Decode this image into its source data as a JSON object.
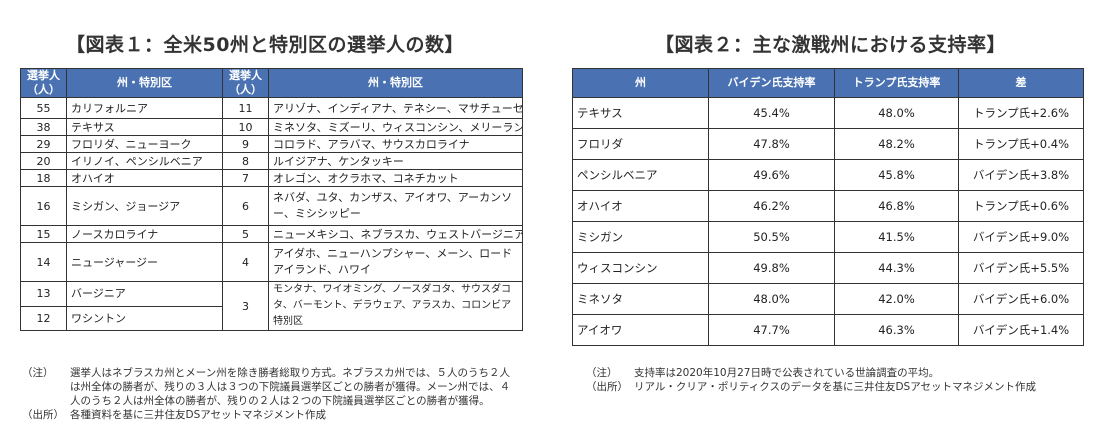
{
  "table1": {
    "title": "【図表１：全米50州と特別区の選挙人の数】",
    "headers": [
      "選挙人（人）",
      "州・特別区",
      "選挙人（人）",
      "州・特別区"
    ],
    "left_rows": [
      {
        "n": "55",
        "s": "カリフォルニア"
      },
      {
        "n": "38",
        "s": "テキサス"
      },
      {
        "n": "29",
        "s": "フロリダ、ニューヨーク"
      },
      {
        "n": "20",
        "s": "イリノイ、ペンシルベニア"
      },
      {
        "n": "18",
        "s": "オハイオ"
      },
      {
        "n": "16",
        "s": "ミシガン、ジョージア"
      },
      {
        "n": "15",
        "s": "ノースカロライナ"
      },
      {
        "n": "14",
        "s": "ニュージャージー"
      },
      {
        "n": "13",
        "s": "バージニア"
      },
      {
        "n": "12",
        "s": "ワシントン"
      }
    ],
    "right_rows": [
      {
        "n": "11",
        "s": "アリゾナ、インディアナ、テネシー、マサチューセッツ"
      },
      {
        "n": "10",
        "s": "ミネソタ、ミズーリ、ウィスコンシン、メリーランド"
      },
      {
        "n": "9",
        "s": "コロラド、アラバマ、サウスカロライナ"
      },
      {
        "n": "8",
        "s": "ルイジアナ、ケンタッキー"
      },
      {
        "n": "7",
        "s": "オレゴン、オクラホマ、コネチカット"
      },
      {
        "n": "6",
        "s": "ネバダ、ユタ、カンザス、アイオワ、アーカンソー、ミシシッピー"
      },
      {
        "n": "5",
        "s": "ニューメキシコ、ネブラスカ、ウェストバージニア"
      },
      {
        "n": "4",
        "s": "アイダホ、ニューハンプシャー、メーン、ロードアイランド、ハワイ"
      },
      {
        "n": "3",
        "s": "モンタナ、ワイオミング、ノースダコタ、サウスダコタ、バーモント、デラウェア、アラスカ、コロンビア特別区"
      }
    ]
  },
  "table2": {
    "title": "【図表２：主な激戦州における支持率】",
    "headers": [
      "州",
      "バイデン氏支持率",
      "トランプ氏支持率",
      "差"
    ],
    "rows": [
      {
        "state": "テキサス",
        "biden": "45.4%",
        "trump": "48.0%",
        "diff": "トランプ氏+2.6%"
      },
      {
        "state": "フロリダ",
        "biden": "47.8%",
        "trump": "48.2%",
        "diff": "トランプ氏+0.4%"
      },
      {
        "state": "ペンシルベニア",
        "biden": "49.6%",
        "trump": "45.8%",
        "diff": "バイデン氏+3.8%"
      },
      {
        "state": "オハイオ",
        "biden": "46.2%",
        "trump": "46.8%",
        "diff": "トランプ氏+0.6%"
      },
      {
        "state": "ミシガン",
        "biden": "50.5%",
        "trump": "41.5%",
        "diff": "バイデン氏+9.0%"
      },
      {
        "state": "ウィスコンシン",
        "biden": "49.8%",
        "trump": "44.3%",
        "diff": "バイデン氏+5.5%"
      },
      {
        "state": "ミネソタ",
        "biden": "48.0%",
        "trump": "42.0%",
        "diff": "バイデン氏+6.0%"
      },
      {
        "state": "アイオワ",
        "biden": "47.7%",
        "trump": "46.3%",
        "diff": "バイデン氏+1.4%"
      }
    ]
  },
  "notes1": {
    "note_label": "（注）",
    "note_text": "選挙人はネブラスカ州とメーン州を除き勝者総取り方式。ネブラスカ州では、５人のうち２人は州全体の勝者が、残りの３人は３つの下院議員選挙区ごとの勝者が獲得。メーン州では、４人のうち２人は州全体の勝者が、残りの２人は２つの下院議員選挙区ごとの勝者が獲得。",
    "source_label": "（出所）",
    "source_text": "各種資料を基に三井住友DSアセットマネジメント作成"
  },
  "notes2": {
    "note_label": "（注）",
    "note_text": "支持率は2020年10月27日時で公表されている世論調査の平均。",
    "source_label": "（出所）",
    "source_text": "リアル・クリア・ポリティクスのデータを基に三井住友DSアセットマネジメント作成"
  }
}
